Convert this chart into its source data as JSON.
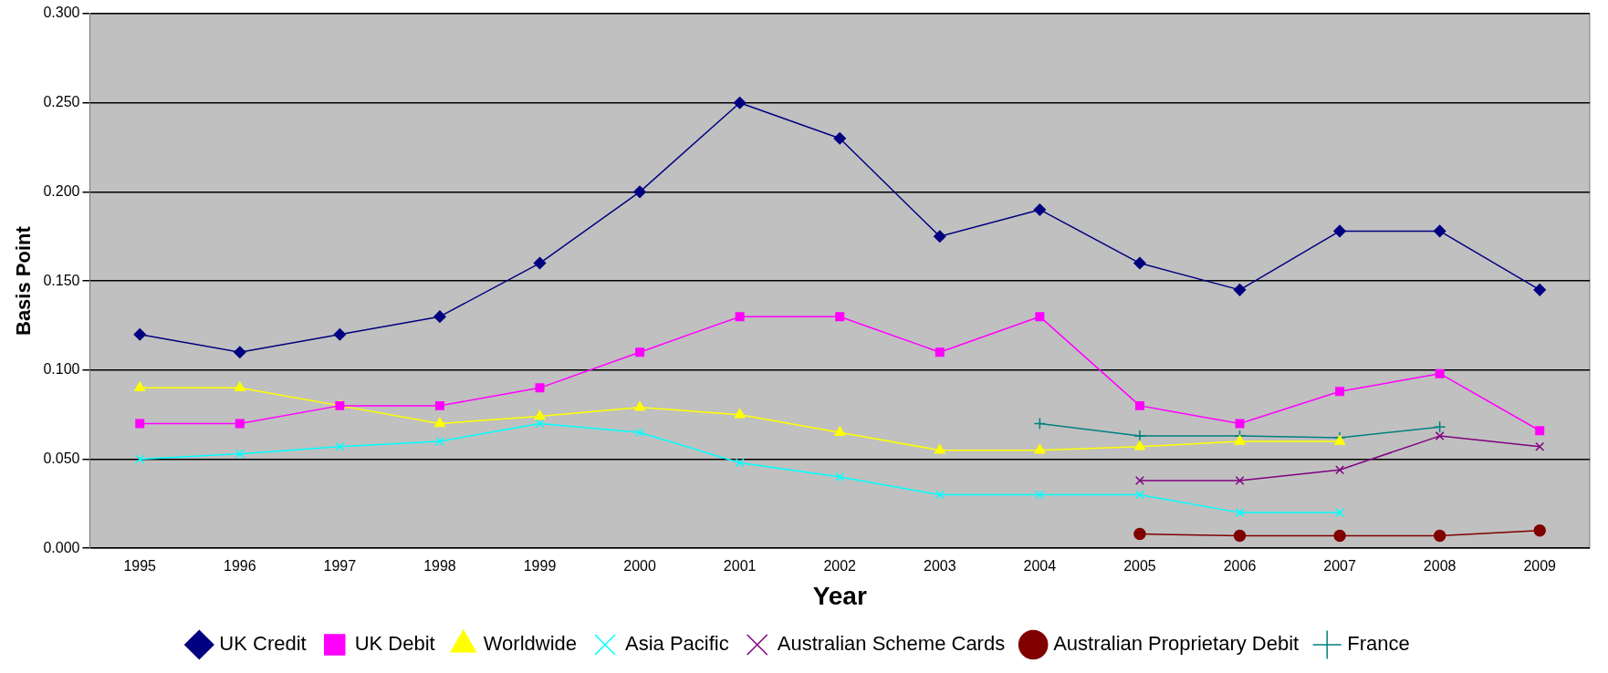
{
  "chart_data": {
    "type": "line",
    "xlabel": "Year",
    "ylabel": "Basis Point",
    "categories": [
      "1995",
      "1996",
      "1997",
      "1998",
      "1999",
      "2000",
      "2001",
      "2002",
      "2003",
      "2004",
      "2005",
      "2006",
      "2007",
      "2008",
      "2009"
    ],
    "ylim": [
      0,
      0.3
    ],
    "yticks": [
      {
        "value": 0,
        "label": "0.000"
      },
      {
        "value": 0.05,
        "label": "0.050"
      },
      {
        "value": 0.1,
        "label": "0.100"
      },
      {
        "value": 0.15,
        "label": "0.150"
      },
      {
        "value": 0.2,
        "label": "0.200"
      },
      {
        "value": 0.25,
        "label": "0.250"
      },
      {
        "value": 0.3,
        "label": "0.300"
      }
    ],
    "grid": "y",
    "legend": "bottom",
    "series": [
      {
        "name": "UK Credit",
        "color": "#000080",
        "marker": "diamond",
        "values": [
          0.12,
          0.11,
          0.12,
          0.13,
          0.16,
          0.2,
          0.25,
          0.23,
          0.175,
          0.19,
          0.16,
          0.145,
          0.178,
          0.178,
          0.145
        ]
      },
      {
        "name": "UK Debit",
        "color": "#ff00ff",
        "marker": "square",
        "values": [
          0.07,
          0.07,
          0.08,
          0.08,
          0.09,
          0.11,
          0.13,
          0.13,
          0.11,
          0.13,
          0.08,
          0.07,
          0.088,
          0.098,
          0.066
        ]
      },
      {
        "name": "Worldwide",
        "color": "#ffff00",
        "marker": "triangle",
        "values": [
          0.09,
          0.09,
          0.08,
          0.07,
          0.074,
          0.079,
          0.075,
          0.065,
          0.055,
          0.055,
          0.057,
          0.06,
          0.06,
          null,
          null
        ]
      },
      {
        "name": "Asia Pacific",
        "color": "#00ffff",
        "marker": "cross",
        "values": [
          0.05,
          0.053,
          0.057,
          0.06,
          0.07,
          0.065,
          0.048,
          0.04,
          0.03,
          0.03,
          0.03,
          0.02,
          0.02,
          null,
          null
        ]
      },
      {
        "name": "Australian Scheme Cards",
        "color": "#800080",
        "marker": "cross",
        "values": [
          null,
          null,
          null,
          null,
          null,
          null,
          null,
          null,
          null,
          null,
          0.038,
          0.038,
          0.044,
          0.063,
          0.057
        ]
      },
      {
        "name": "Australian Proprietary Debit",
        "color": "#800000",
        "marker": "circle",
        "values": [
          null,
          null,
          null,
          null,
          null,
          null,
          null,
          null,
          null,
          null,
          0.008,
          0.007,
          0.007,
          0.007,
          0.01
        ]
      },
      {
        "name": "France",
        "color": "#008080",
        "marker": "plus",
        "values": [
          null,
          null,
          null,
          null,
          null,
          null,
          null,
          null,
          null,
          0.07,
          0.063,
          0.063,
          0.062,
          0.068,
          null
        ]
      }
    ]
  }
}
